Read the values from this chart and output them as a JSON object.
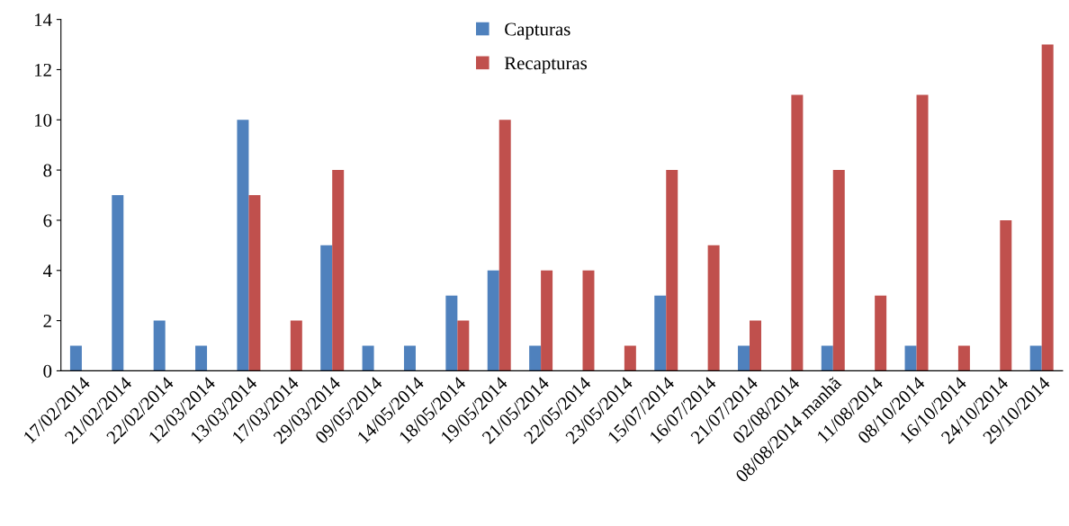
{
  "chart_data": {
    "type": "bar",
    "categories": [
      "17/02/2014",
      "21/02/2014",
      "22/02/2014",
      "12/03/2014",
      "13/03/2014",
      "17/03/2014",
      "29/03/2014",
      "09/05/2014",
      "14/05/2014",
      "18/05/2014",
      "19/05/2014",
      "21/05/2014",
      "22/05/2014",
      "23/05/2014",
      "15/07/2014",
      "16/07/2014",
      "21/07/2014",
      "02/08/2014",
      "08/08/2014 manhã",
      "11/08/2014",
      "08/10/2014",
      "16/10/2014",
      "24/10/2014",
      "29/10/2014"
    ],
    "series": [
      {
        "name": "Capturas",
        "color": "#4f81bd",
        "values": [
          1,
          7,
          2,
          1,
          10,
          0,
          5,
          1,
          1,
          3,
          4,
          1,
          0,
          0,
          3,
          0,
          1,
          0,
          1,
          0,
          1,
          0,
          0,
          1
        ]
      },
      {
        "name": "Recapturas",
        "color": "#c0504d",
        "values": [
          0,
          0,
          0,
          0,
          7,
          2,
          8,
          0,
          0,
          2,
          10,
          4,
          4,
          1,
          8,
          5,
          2,
          11,
          8,
          3,
          11,
          1,
          6,
          13
        ]
      }
    ],
    "ylim": [
      0,
      14
    ],
    "yticks": [
      0,
      2,
      4,
      6,
      8,
      10,
      12,
      14
    ],
    "grid": false,
    "legend": "top"
  }
}
